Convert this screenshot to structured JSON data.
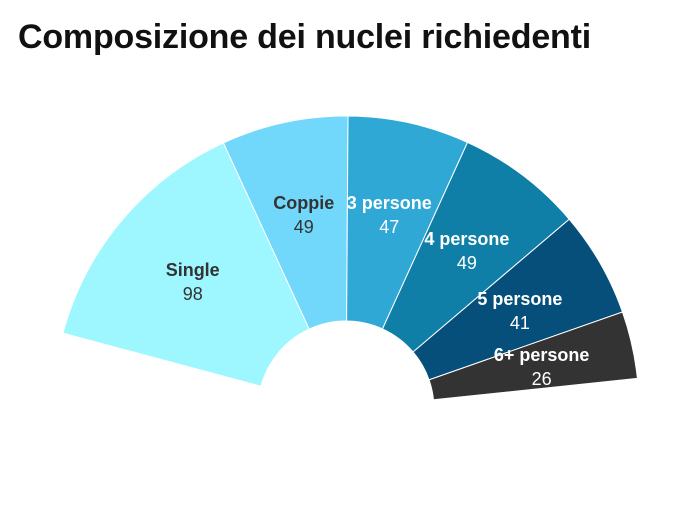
{
  "title": "Composizione dei nuclei richiedenti",
  "chart_data": {
    "type": "pie",
    "variant": "semicircle-donut",
    "title": "Composizione dei nuclei richiedenti",
    "categories": [
      "Single",
      "Coppie",
      "3 persone",
      "4 persone",
      "5 persone",
      "6+ persone"
    ],
    "values": [
      98,
      49,
      47,
      49,
      41,
      26
    ],
    "colors": [
      "#9ef7ff",
      "#72d8fb",
      "#2fa8d5",
      "#0f7fa8",
      "#064f7a",
      "#333333"
    ],
    "label_colors": [
      "#333333",
      "#333333",
      "#ffffff",
      "#ffffff",
      "#ffffff",
      "#ffffff"
    ]
  }
}
